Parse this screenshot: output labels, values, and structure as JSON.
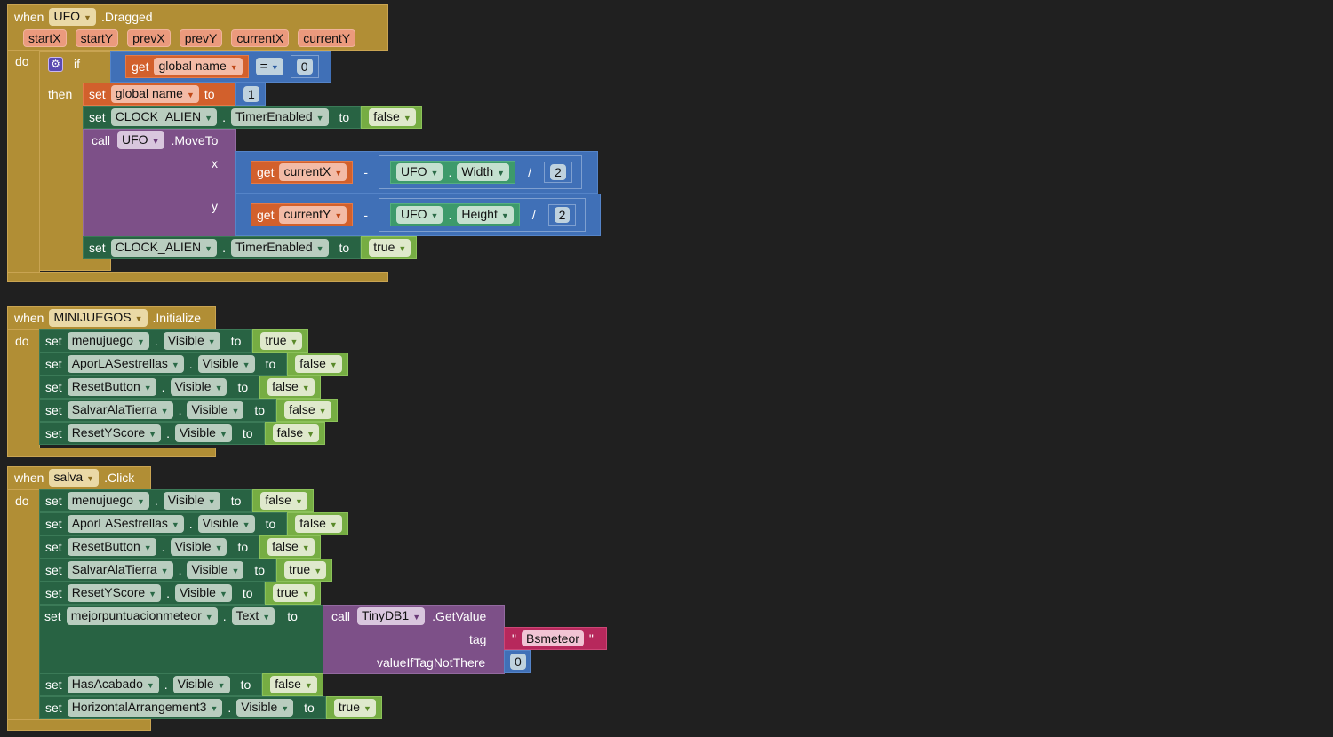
{
  "labels": {
    "when": "when",
    "do": "do",
    "set": "set",
    "to": "to",
    "get": "get",
    "call": "call",
    "dot": ".",
    "if": "if",
    "then": "then"
  },
  "colors": {
    "event": "#b18e35",
    "setter": "#286343",
    "logic": "#76ad43",
    "math": "#4070b7",
    "variable": "#d2602c",
    "procedure": "#7d5088",
    "component": "#3d9a6b",
    "text": "#b7285c"
  },
  "event1": {
    "component": "UFO",
    "event": ".Dragged",
    "params": [
      "startX",
      "startY",
      "prevX",
      "prevY",
      "currentX",
      "currentY"
    ],
    "gear_icon": "gear-icon",
    "cond": {
      "var": "global name",
      "op": "=",
      "value": "0"
    },
    "set_global": {
      "var": "global name",
      "value": "1"
    },
    "timer_off": {
      "component": "CLOCK_ALIEN",
      "property": "TimerEnabled",
      "value": "false"
    },
    "moveto": {
      "component": "UFO",
      "method": ".MoveTo",
      "x_label": "x",
      "y_label": "y",
      "x": {
        "var": "currentX",
        "minus": "-",
        "component": "UFO",
        "property": "Width",
        "div": "/",
        "divisor": "2"
      },
      "y": {
        "var": "currentY",
        "minus": "-",
        "component": "UFO",
        "property": "Height",
        "div": "/",
        "divisor": "2"
      }
    },
    "timer_on": {
      "component": "CLOCK_ALIEN",
      "property": "TimerEnabled",
      "value": "true"
    }
  },
  "event2": {
    "component": "MINIJUEGOS",
    "event": ".Initialize",
    "rows": [
      {
        "component": "menujuego",
        "property": "Visible",
        "value": "true"
      },
      {
        "component": "AporLASestrellas",
        "property": "Visible",
        "value": "false"
      },
      {
        "component": "ResetButton",
        "property": "Visible",
        "value": "false"
      },
      {
        "component": "SalvarAlaTierra",
        "property": "Visible",
        "value": "false"
      },
      {
        "component": "ResetYScore",
        "property": "Visible",
        "value": "false"
      }
    ]
  },
  "event3": {
    "component": "salva",
    "event": ".Click",
    "rows": [
      {
        "component": "menujuego",
        "property": "Visible",
        "value": "false"
      },
      {
        "component": "AporLASestrellas",
        "property": "Visible",
        "value": "false"
      },
      {
        "component": "ResetButton",
        "property": "Visible",
        "value": "false"
      },
      {
        "component": "SalvarAlaTierra",
        "property": "Visible",
        "value": "true"
      },
      {
        "component": "ResetYScore",
        "property": "Visible",
        "value": "true"
      }
    ],
    "getvalue": {
      "component": "mejorpuntuacionmeteor",
      "property": "Text",
      "db": "TinyDB1",
      "method": ".GetValue",
      "tag_label": "tag",
      "tag": "Bsmeteor",
      "quote": "\"",
      "default_label": "valueIfTagNotThere",
      "default": "0"
    },
    "rows_after": [
      {
        "component": "HasAcabado",
        "property": "Visible",
        "value": "false"
      },
      {
        "component": "HorizontalArrangement3",
        "property": "Visible",
        "value": "true"
      }
    ]
  }
}
